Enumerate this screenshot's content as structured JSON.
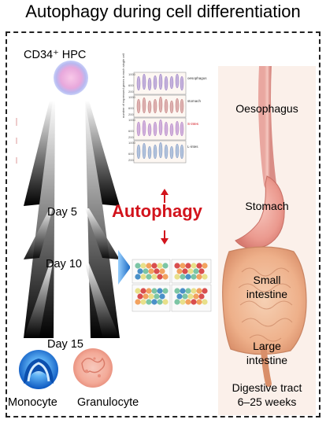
{
  "title": "Autophagy during cell differentiation",
  "hematopoiesis": {
    "start_label": "CD34⁺ HPC",
    "days": [
      "Day 5",
      "Day 10",
      "Day 15"
    ],
    "cell_types": [
      "Monocyte",
      "Granulocyte"
    ]
  },
  "center": {
    "label": "Autophagy",
    "violin_organs": [
      "oesophagus",
      "stomach",
      "S-intes",
      "L-intes"
    ],
    "colors": {
      "accent": "#d2131c",
      "blue_arrow": "#1e88e5"
    }
  },
  "digestive": {
    "organs": [
      "Oesophagus",
      "Stomach",
      "Small",
      "intestine",
      "Large",
      "intestine"
    ],
    "caption_line1": "Digestive tract",
    "caption_line2": "6–25 weeks"
  }
}
